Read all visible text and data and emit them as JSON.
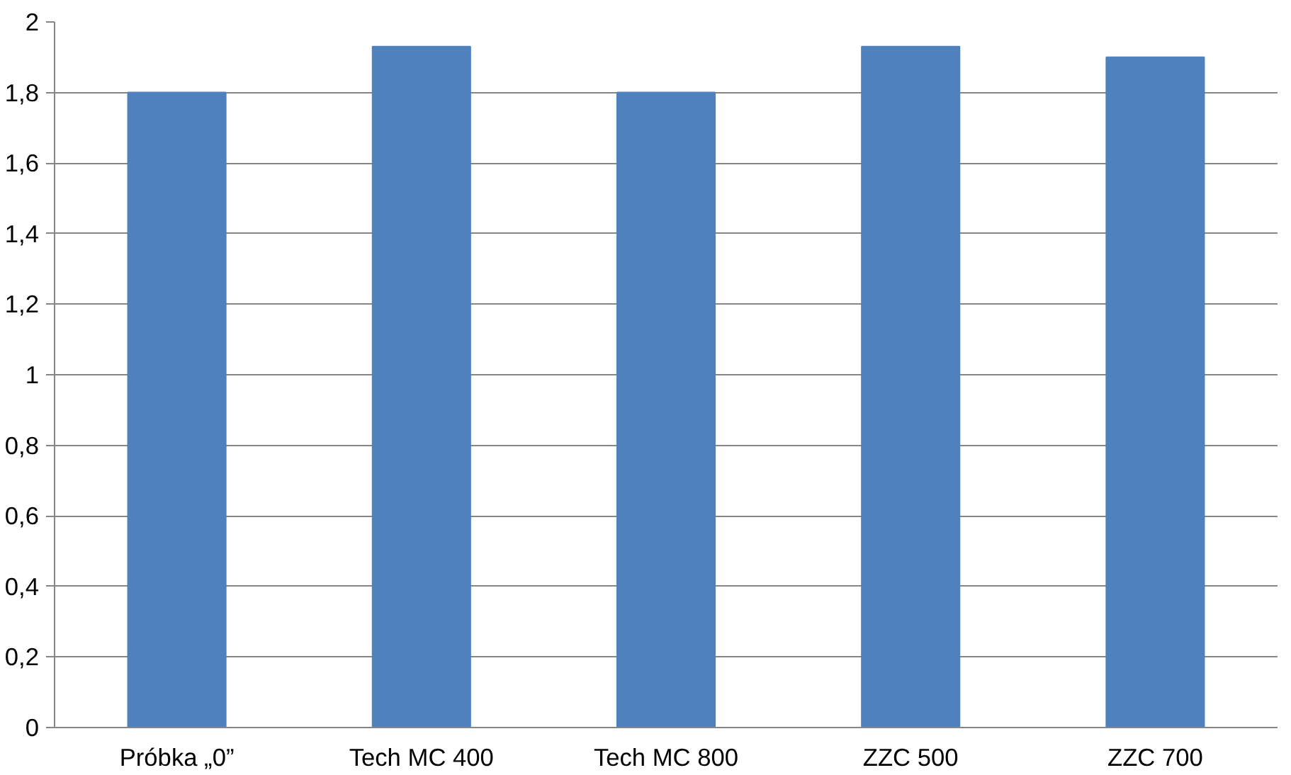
{
  "chart_data": {
    "type": "bar",
    "categories": [
      "Próbka „0”",
      "Tech MC 400",
      "Tech MC 800",
      "ZZC 500",
      "ZZC 700"
    ],
    "values": [
      1.8,
      1.93,
      1.8,
      1.93,
      1.9
    ],
    "color": "#4f81bd",
    "ylim": [
      0,
      2
    ],
    "yticks": [
      0,
      {
        "value": 0.2,
        "label": "0,2"
      },
      {
        "value": 0.4,
        "label": "0,4"
      },
      {
        "value": 0.6,
        "label": "0,6"
      },
      {
        "value": 0.8,
        "label": "0,8"
      },
      1,
      {
        "value": 1.2,
        "label": "1,2"
      },
      {
        "value": 1.4,
        "label": "1,4"
      },
      {
        "value": 1.6,
        "label": "1,6"
      },
      {
        "value": 1.8,
        "label": "1,8"
      },
      2
    ],
    "grid": "y"
  }
}
